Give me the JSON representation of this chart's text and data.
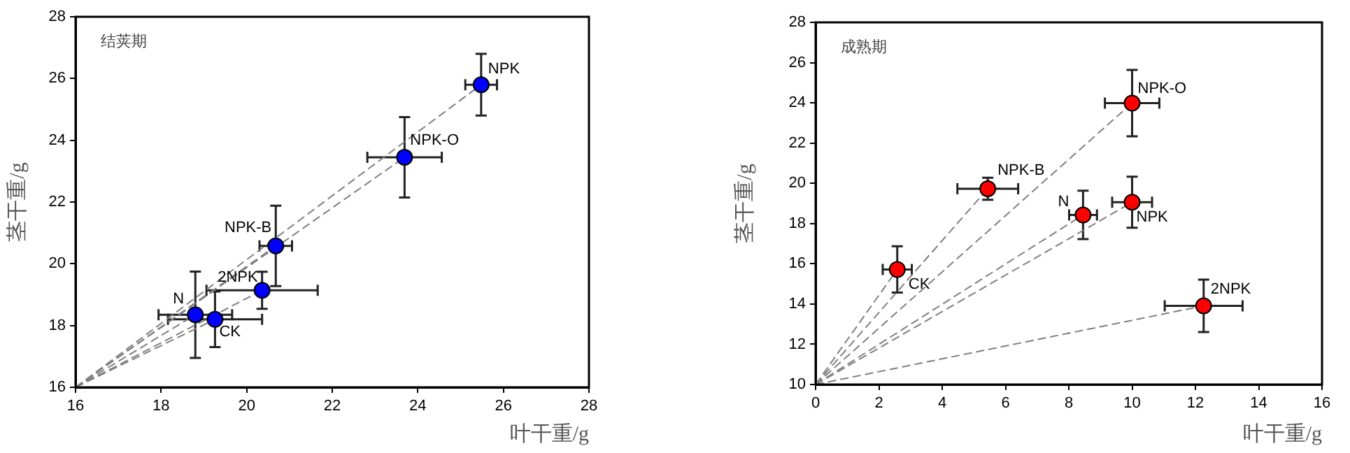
{
  "chart_data": [
    {
      "type": "scatter",
      "xlabel": "叶干重/g",
      "ylabel": "茎干重/g",
      "xlim": [
        16,
        28
      ],
      "ylim": [
        16,
        28
      ],
      "xticks": [
        16,
        18,
        20,
        22,
        24,
        26,
        28
      ],
      "yticks": [
        16,
        18,
        20,
        22,
        24,
        26,
        28
      ],
      "grid": false,
      "legend": false,
      "annotations": [
        "结荚期",
        {
          "text": "NPK",
          "x": 25.48,
          "y": 25.8
        },
        {
          "text": "NPK-O",
          "x": 23.69,
          "y": 23.45
        },
        {
          "text": "NPK-B",
          "x": 20.68,
          "y": 20.58
        },
        {
          "text": "2NPK",
          "x": 20.36,
          "y": 19.14
        },
        {
          "text": "N",
          "x": 18.8,
          "y": 18.35
        },
        {
          "text": "CK",
          "x": 19.26,
          "y": 18.2
        }
      ],
      "series": [
        {
          "marker": "circle",
          "color": "#0000ff",
          "x": [
            25.48,
            23.69,
            20.68,
            20.36,
            18.8,
            19.26
          ],
          "values": [
            25.8,
            23.45,
            20.58,
            19.14,
            18.35,
            18.2
          ],
          "errors": [
            1.0,
            1.3,
            1.3,
            0.6,
            1.4,
            0.9
          ],
          "xerrors": [
            0.37,
            0.87,
            0.38,
            1.3,
            0.86,
            1.1
          ]
        },
        {
          "type": "line",
          "color": "#808080",
          "line_style": "dashed",
          "x": [
            16,
            25.48
          ],
          "values": [
            16,
            25.8
          ]
        },
        {
          "type": "line",
          "color": "#808080",
          "line_style": "dashed",
          "x": [
            16,
            23.69
          ],
          "values": [
            16,
            23.45
          ]
        },
        {
          "type": "line",
          "color": "#808080",
          "line_style": "dashed",
          "x": [
            16,
            20.68
          ],
          "values": [
            16,
            20.58
          ]
        },
        {
          "type": "line",
          "color": "#808080",
          "line_style": "dashed",
          "x": [
            16,
            20.36
          ],
          "values": [
            16,
            19.14
          ]
        },
        {
          "type": "line",
          "color": "#808080",
          "line_style": "dashed",
          "x": [
            16,
            18.8
          ],
          "values": [
            16,
            18.35
          ]
        },
        {
          "type": "line",
          "color": "#808080",
          "line_style": "dashed",
          "x": [
            16,
            19.26
          ],
          "values": [
            16,
            18.2
          ]
        }
      ]
    },
    {
      "type": "scatter",
      "xlabel": "叶干重/g",
      "ylabel": "茎干重/g",
      "xlim": [
        0,
        16
      ],
      "ylim": [
        10,
        28
      ],
      "xticks": [
        0,
        2,
        4,
        6,
        8,
        10,
        12,
        14,
        16
      ],
      "yticks": [
        10,
        12,
        14,
        16,
        18,
        20,
        22,
        24,
        26,
        28
      ],
      "grid": false,
      "legend": false,
      "annotations": [
        "成熟期",
        {
          "text": "NPK-O",
          "x": 10.0,
          "y": 23.99
        },
        {
          "text": "NPK-B",
          "x": 5.44,
          "y": 19.73
        },
        {
          "text": "N",
          "x": 8.45,
          "y": 18.43
        },
        {
          "text": "NPK",
          "x": 10.0,
          "y": 19.06
        },
        {
          "text": "CK",
          "x": 2.58,
          "y": 15.72
        },
        {
          "text": "2NPK",
          "x": 12.26,
          "y": 13.91
        }
      ],
      "series": [
        {
          "marker": "circle",
          "color": "#ff0000",
          "x": [
            10.0,
            5.44,
            8.45,
            10.0,
            2.58,
            12.26
          ],
          "values": [
            23.99,
            19.73,
            18.43,
            19.06,
            15.72,
            13.91
          ],
          "errors": [
            1.65,
            0.55,
            1.2,
            1.27,
            1.15,
            1.3
          ],
          "xerrors": [
            0.86,
            0.96,
            0.44,
            0.63,
            0.46,
            1.23
          ]
        },
        {
          "type": "line",
          "color": "#808080",
          "line_style": "dashed",
          "x": [
            0,
            10.0
          ],
          "values": [
            10,
            23.99
          ]
        },
        {
          "type": "line",
          "color": "#808080",
          "line_style": "dashed",
          "x": [
            0,
            5.44
          ],
          "values": [
            10,
            19.73
          ]
        },
        {
          "type": "line",
          "color": "#808080",
          "line_style": "dashed",
          "x": [
            0,
            8.45
          ],
          "values": [
            10,
            18.43
          ]
        },
        {
          "type": "line",
          "color": "#808080",
          "line_style": "dashed",
          "x": [
            0,
            10.0
          ],
          "values": [
            10,
            19.06
          ]
        },
        {
          "type": "line",
          "color": "#808080",
          "line_style": "dashed",
          "x": [
            0,
            2.58
          ],
          "values": [
            10,
            15.72
          ]
        },
        {
          "type": "line",
          "color": "#808080",
          "line_style": "dashed",
          "x": [
            0,
            12.26
          ],
          "values": [
            10,
            13.91
          ]
        }
      ]
    }
  ]
}
